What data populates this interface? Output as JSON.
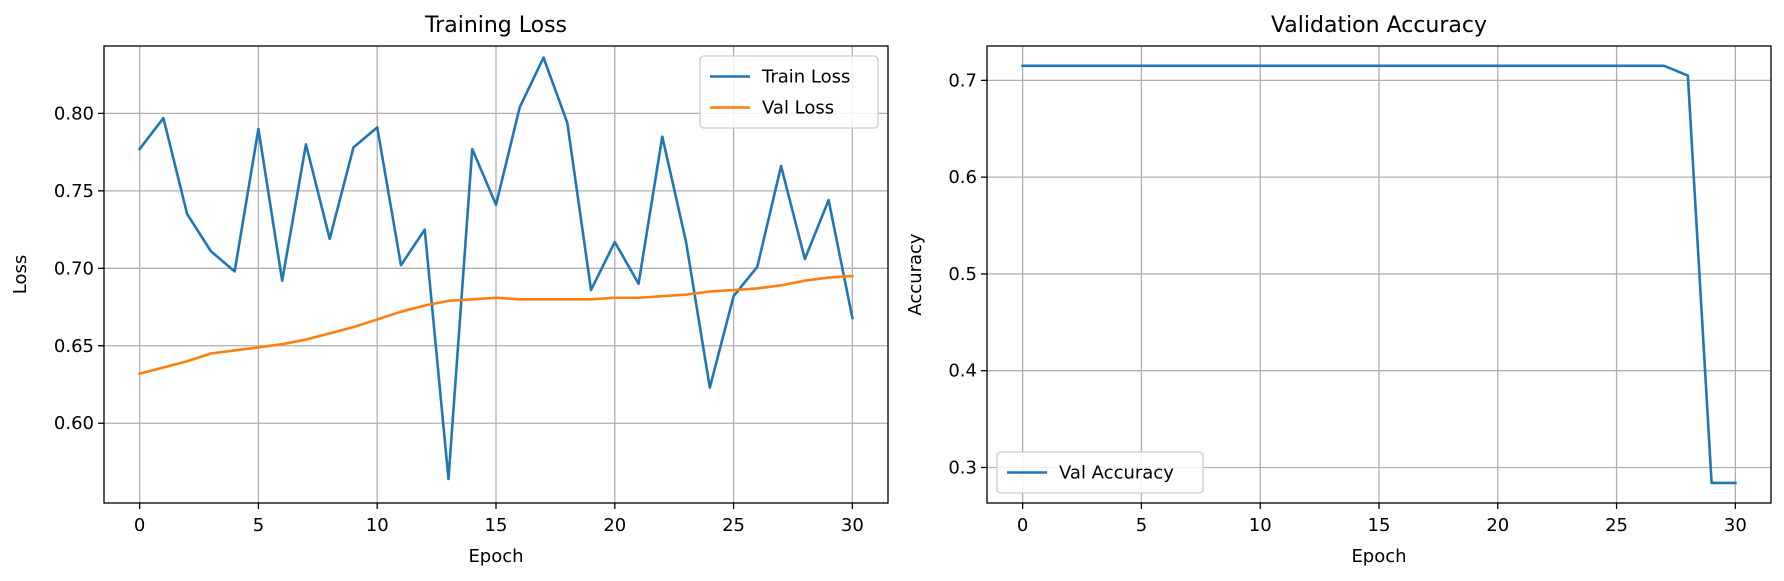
{
  "chart_data": [
    {
      "type": "line",
      "title": "Training Loss",
      "xlabel": "Epoch",
      "ylabel": "Loss",
      "xlim": [
        -1.5,
        31.5
      ],
      "ylim": [
        0.5485,
        0.8435
      ],
      "xticks": [
        0,
        5,
        10,
        15,
        20,
        25,
        30
      ],
      "yticks": [
        0.6,
        0.65,
        0.7,
        0.75,
        0.8
      ],
      "ytick_format": 2,
      "grid": true,
      "legend": "upper right",
      "x": [
        0,
        1,
        2,
        3,
        4,
        5,
        6,
        7,
        8,
        9,
        10,
        11,
        12,
        13,
        14,
        15,
        16,
        17,
        18,
        19,
        20,
        21,
        22,
        23,
        24,
        25,
        26,
        27,
        28,
        29,
        30
      ],
      "series": [
        {
          "name": "Train Loss",
          "color": "#1f77b4",
          "values": [
            0.777,
            0.797,
            0.735,
            0.711,
            0.698,
            0.79,
            0.692,
            0.78,
            0.719,
            0.778,
            0.791,
            0.702,
            0.725,
            0.564,
            0.777,
            0.741,
            0.804,
            0.836,
            0.794,
            0.686,
            0.717,
            0.69,
            0.785,
            0.717,
            0.623,
            0.682,
            0.701,
            0.766,
            0.706,
            0.744,
            0.668
          ]
        },
        {
          "name": "Val Loss",
          "color": "#ff7f0e",
          "values": [
            0.632,
            0.636,
            0.64,
            0.645,
            0.647,
            0.649,
            0.651,
            0.654,
            0.658,
            0.662,
            0.667,
            0.672,
            0.676,
            0.679,
            0.68,
            0.681,
            0.68,
            0.68,
            0.68,
            0.68,
            0.681,
            0.681,
            0.682,
            0.683,
            0.685,
            0.686,
            0.687,
            0.689,
            0.692,
            0.694,
            0.695
          ]
        }
      ]
    },
    {
      "type": "line",
      "title": "Validation Accuracy",
      "xlabel": "Epoch",
      "ylabel": "Accuracy",
      "xlim": [
        -1.5,
        31.5
      ],
      "ylim": [
        0.2633,
        0.7355
      ],
      "xticks": [
        0,
        5,
        10,
        15,
        20,
        25,
        30
      ],
      "yticks": [
        0.3,
        0.4,
        0.5,
        0.6,
        0.7
      ],
      "ytick_format": 1,
      "grid": true,
      "legend": "lower left",
      "x": [
        0,
        1,
        2,
        3,
        4,
        5,
        6,
        7,
        8,
        9,
        10,
        11,
        12,
        13,
        14,
        15,
        16,
        17,
        18,
        19,
        20,
        21,
        22,
        23,
        24,
        25,
        26,
        27,
        28,
        29,
        30
      ],
      "series": [
        {
          "name": "Val Accuracy",
          "color": "#1f77b4",
          "values": [
            0.715,
            0.715,
            0.715,
            0.715,
            0.715,
            0.715,
            0.715,
            0.715,
            0.715,
            0.715,
            0.715,
            0.715,
            0.715,
            0.715,
            0.715,
            0.715,
            0.715,
            0.715,
            0.715,
            0.715,
            0.715,
            0.715,
            0.715,
            0.715,
            0.715,
            0.715,
            0.715,
            0.715,
            0.705,
            0.284,
            0.284
          ]
        }
      ]
    }
  ]
}
